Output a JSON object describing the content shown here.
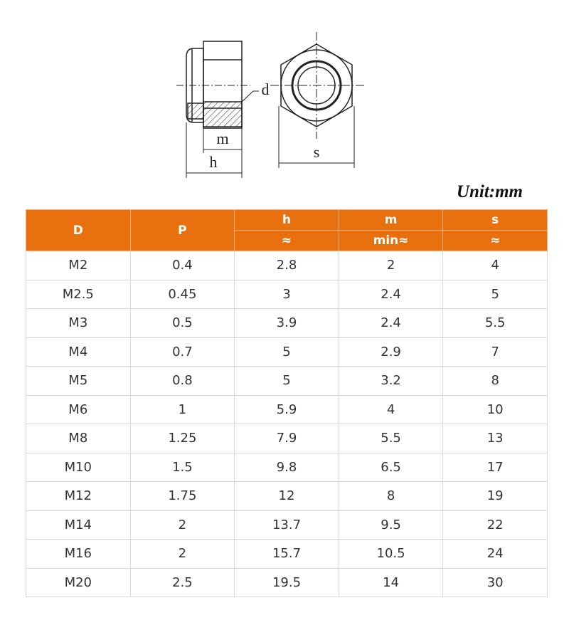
{
  "diagram": {
    "labels": {
      "d": "d",
      "m": "m",
      "h": "h",
      "s": "s"
    }
  },
  "unit": "Unit:mm",
  "table": {
    "columns": [
      "D",
      "P",
      "h",
      "m",
      "s"
    ],
    "subheaders": {
      "2": "≈",
      "3": "min≈",
      "4": "≈"
    },
    "rows": [
      [
        "M2",
        0.4,
        2.8,
        2,
        4
      ],
      [
        "M2.5",
        0.45,
        3,
        2.4,
        5
      ],
      [
        "M3",
        0.5,
        3.9,
        2.4,
        5.5
      ],
      [
        "M4",
        0.7,
        5,
        2.9,
        7
      ],
      [
        "M5",
        0.8,
        5,
        3.2,
        8
      ],
      [
        "M6",
        1,
        5.9,
        4,
        10
      ],
      [
        "M8",
        1.25,
        7.9,
        5.5,
        13
      ],
      [
        "M10",
        1.5,
        9.8,
        6.5,
        17
      ],
      [
        "M12",
        1.75,
        12,
        8,
        19
      ],
      [
        "M14",
        2,
        13.7,
        9.5,
        22
      ],
      [
        "M16",
        2,
        15.7,
        10.5,
        24
      ],
      [
        "M20",
        2.5,
        19.5,
        14,
        30
      ]
    ]
  }
}
